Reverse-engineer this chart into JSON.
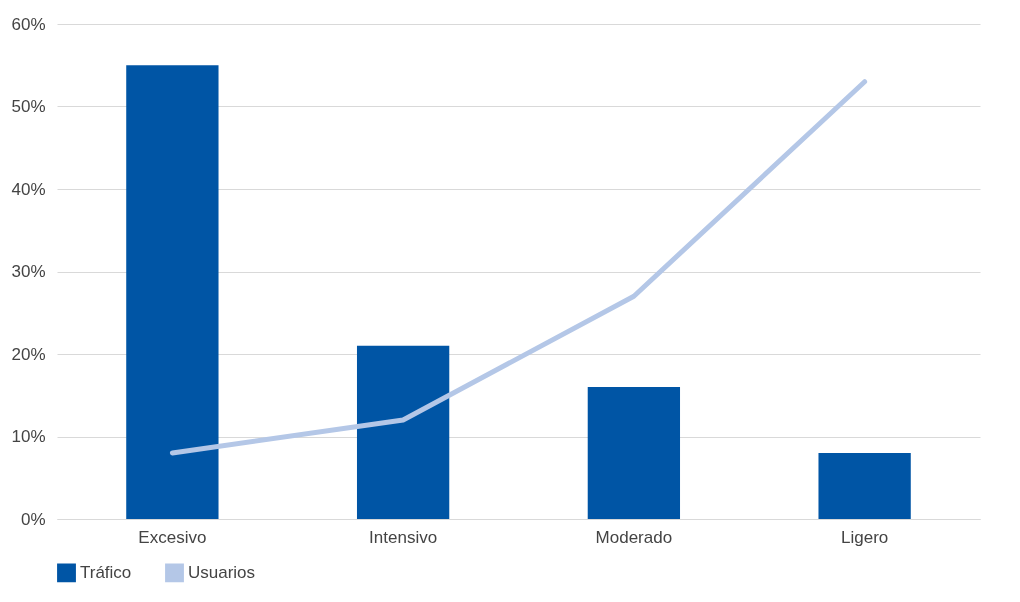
{
  "chart_data": {
    "type": "bar",
    "categories": [
      "Excesivo",
      "Intensivo",
      "Moderado",
      "Ligero"
    ],
    "series": [
      {
        "name": "Tráfico",
        "type": "bar",
        "color": "#0055a5",
        "values": [
          55,
          21,
          16,
          8
        ]
      },
      {
        "name": "Usuarios",
        "type": "line",
        "color": "#b4c7e7",
        "values": [
          8,
          12,
          27,
          53
        ]
      }
    ],
    "ylim": [
      0,
      60
    ],
    "yticks": [
      {
        "value": 0,
        "label": "0%"
      },
      {
        "value": 10,
        "label": "10%"
      },
      {
        "value": 20,
        "label": "20%"
      },
      {
        "value": 30,
        "label": "30%"
      },
      {
        "value": 40,
        "label": "40%"
      },
      {
        "value": 50,
        "label": "50%"
      },
      {
        "value": 60,
        "label": "60%"
      }
    ],
    "grid": "y",
    "legend": "bottom"
  }
}
